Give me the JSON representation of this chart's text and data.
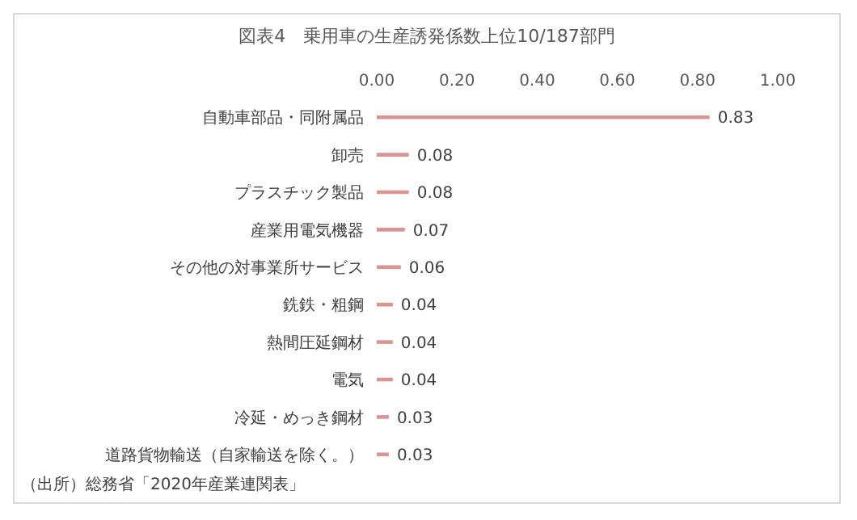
{
  "chart_data": {
    "type": "bar",
    "orientation": "horizontal",
    "title": "図表4　乗用車の生産誘発係数上位10/187部門",
    "categories": [
      "自動車部品・同附属品",
      "卸売",
      "プラスチック製品",
      "産業用電気機器",
      "その他の対事業所サービス",
      "銑鉄・粗鋼",
      "熱間圧延鋼材",
      "電気",
      "冷延・めっき鋼材",
      "道路貨物輸送（自家輸送を除く。）"
    ],
    "values": [
      0.83,
      0.08,
      0.08,
      0.07,
      0.06,
      0.04,
      0.04,
      0.04,
      0.03,
      0.03
    ],
    "color": "#d99594",
    "xlim": [
      0,
      1
    ],
    "xticks": [
      {
        "value": 0,
        "label": "0.00"
      },
      {
        "value": 0.2,
        "label": "0.20"
      },
      {
        "value": 0.4,
        "label": "0.40"
      },
      {
        "value": 0.6,
        "label": "0.60"
      },
      {
        "value": 0.8,
        "label": "0.80"
      },
      {
        "value": 1,
        "label": "1.00"
      }
    ],
    "data_labels": true,
    "annotations": [
      "（出所）総務省「2020年産業連関表」"
    ]
  }
}
